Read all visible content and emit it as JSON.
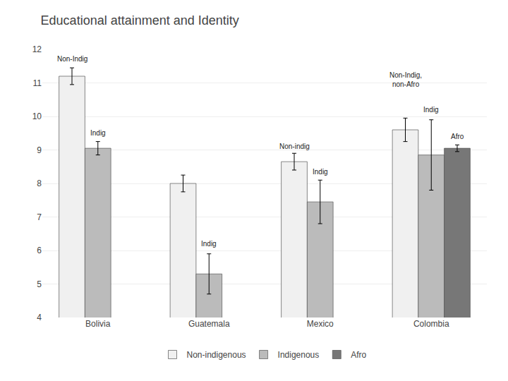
{
  "chart_data": {
    "type": "bar",
    "title": "Educational attainment and Identity",
    "categories": [
      "Bolivia",
      "Guatemala",
      "Mexico",
      "Colombia"
    ],
    "series": [
      {
        "name": "Non-indigenous",
        "color": "#F0F0F0",
        "values": [
          11.2,
          8.0,
          8.65,
          9.6
        ],
        "errors": [
          0.25,
          0.25,
          0.25,
          0.35
        ]
      },
      {
        "name": "Indigenous",
        "color": "#BBBBBB",
        "values": [
          9.05,
          5.3,
          7.45,
          8.85
        ],
        "errors": [
          0.2,
          0.6,
          0.65,
          1.05
        ]
      },
      {
        "name": "Afro",
        "color": "#777777",
        "values": [
          null,
          null,
          null,
          9.05
        ],
        "errors": [
          null,
          null,
          null,
          0.1
        ]
      }
    ],
    "ylim": [
      4,
      12
    ],
    "yticks": [
      4,
      5,
      6,
      7,
      8,
      9,
      10,
      11,
      12
    ],
    "grid": true,
    "legend": "bottom",
    "annotations": [
      {
        "text": "Non-Indig",
        "category": "Bolivia",
        "series": "Non-indigenous",
        "y": 11.55
      },
      {
        "text": "Non-indig",
        "category": "Mexico",
        "series": "Non-indigenous",
        "y": 8.95
      },
      {
        "text": "Non-Indig,\nnon-Afro",
        "category": "Colombia",
        "series": "Non-indigenous",
        "y": 10.8
      },
      {
        "text": "Indig",
        "category": "Bolivia",
        "series": "Indigenous",
        "y": 9.35
      },
      {
        "text": "Indig",
        "category": "Guatemala",
        "series": "Indigenous",
        "y": 6.05
      },
      {
        "text": "Indig",
        "category": "Mexico",
        "series": "Indigenous",
        "y": 8.2
      },
      {
        "text": "Indig",
        "category": "Colombia",
        "series": "Indigenous",
        "y": 10.05
      },
      {
        "text": "Afro",
        "category": "Colombia",
        "series": "Afro",
        "y": 9.25
      }
    ]
  }
}
